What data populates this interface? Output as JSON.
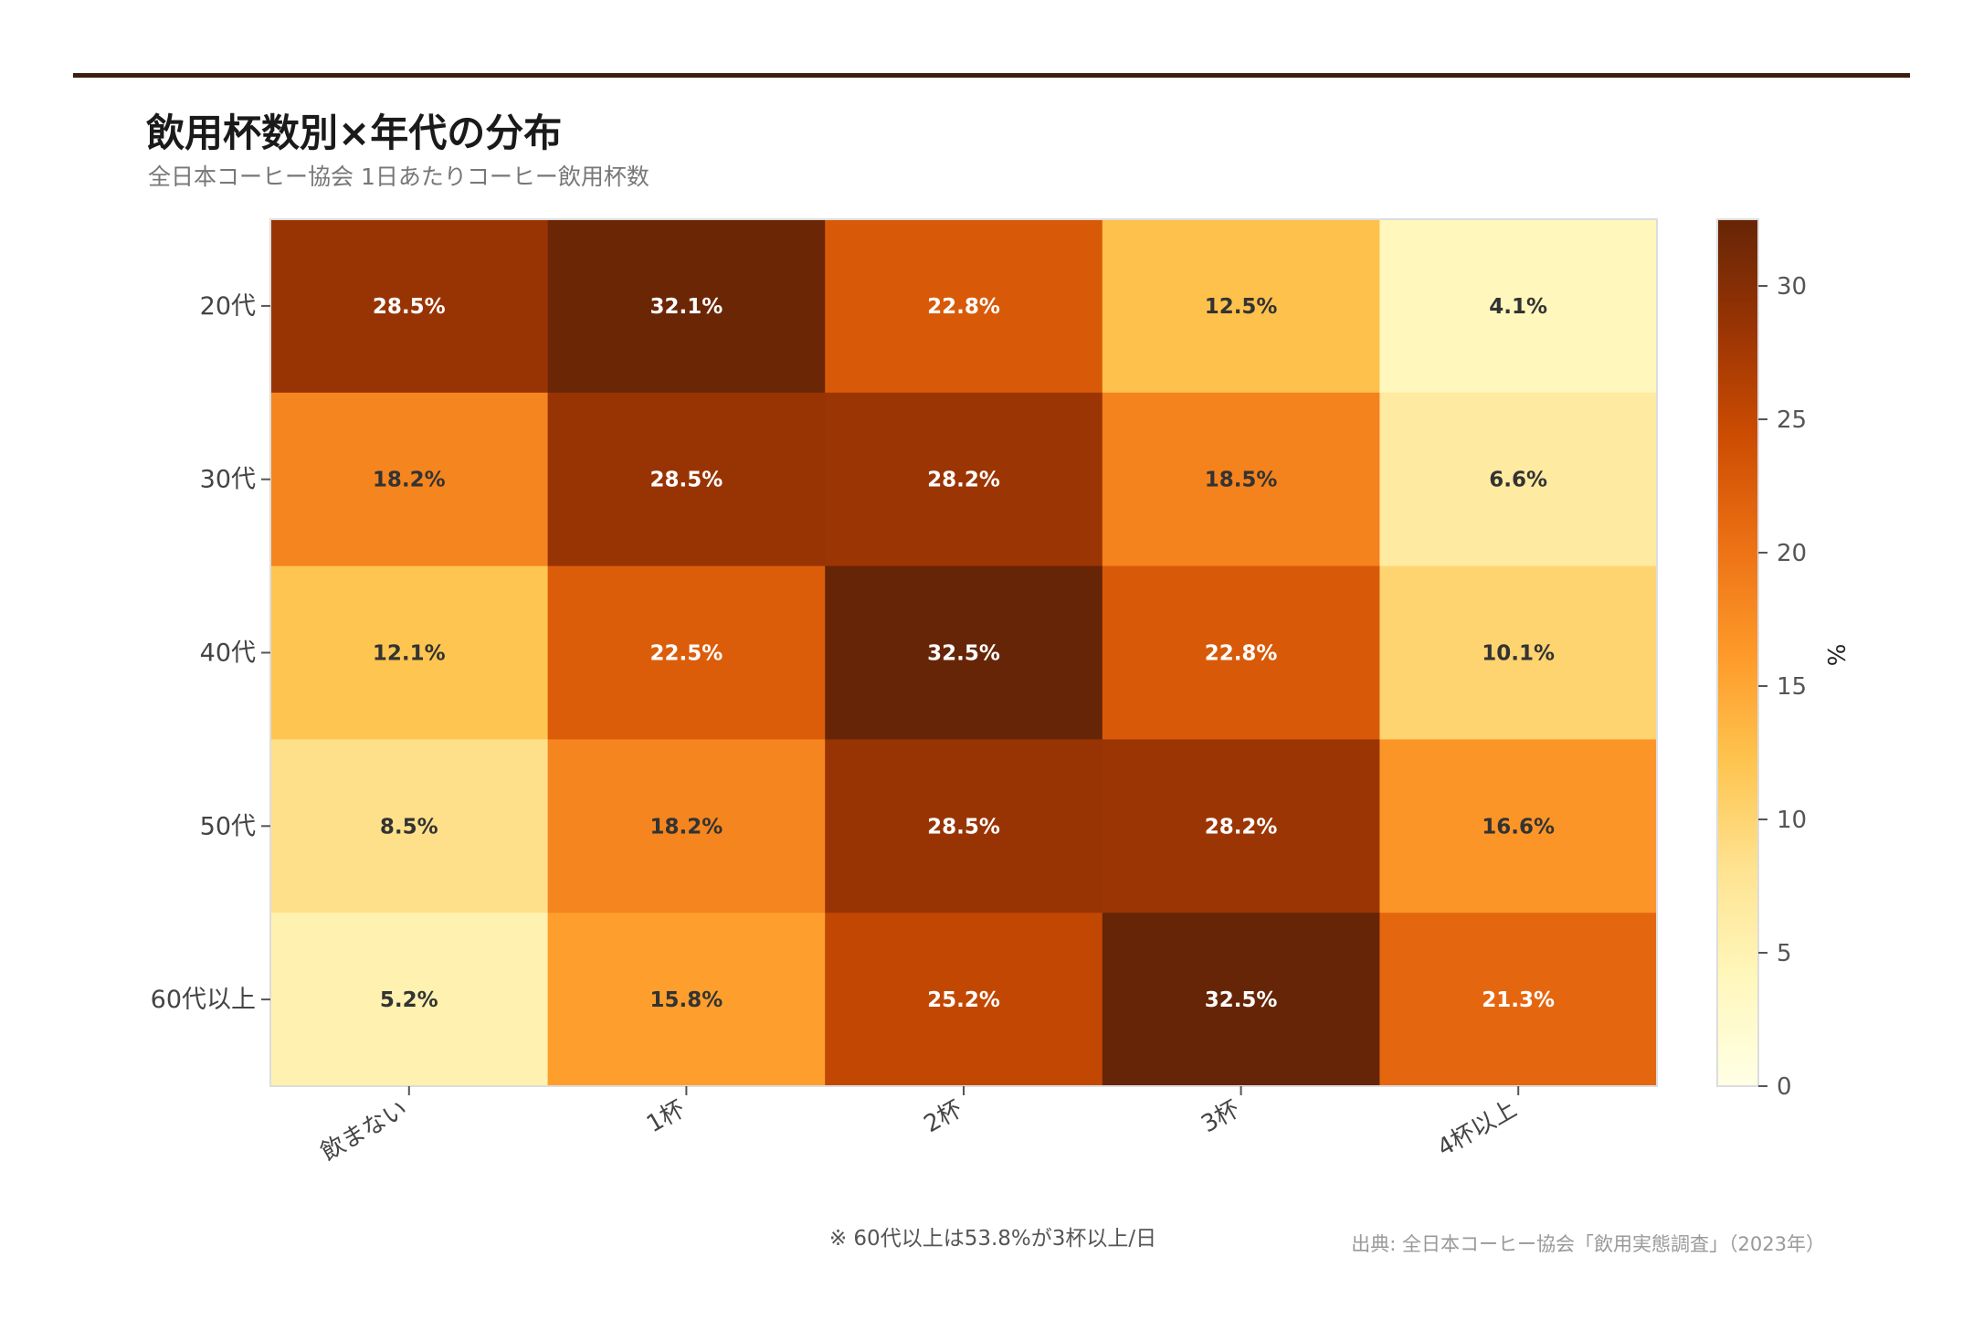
{
  "title": "飲用杯数別×年代の分布",
  "subtitle": "全日本コーヒー協会 1日あたりコーヒー飲用杯数",
  "note": "※ 60代以上は53.8%が3杯以上/日",
  "source": "出典: 全日本コーヒー協会「飲用実態調査」（2023年）",
  "chart_data": {
    "type": "heatmap",
    "title": "飲用杯数別×年代の分布",
    "x_categories": [
      "飲まない",
      "1杯",
      "2杯",
      "3杯",
      "4杯以上"
    ],
    "y_categories": [
      "20代",
      "30代",
      "40代",
      "50代",
      "60代以上"
    ],
    "values": [
      [
        28.5,
        32.1,
        22.8,
        12.5,
        4.1
      ],
      [
        18.2,
        28.5,
        28.2,
        18.5,
        6.6
      ],
      [
        12.1,
        22.5,
        32.5,
        22.8,
        10.1
      ],
      [
        8.5,
        18.2,
        28.5,
        28.2,
        16.6
      ],
      [
        5.2,
        15.8,
        25.2,
        32.5,
        21.3
      ]
    ],
    "value_format": "{v}%",
    "colormap": "YlOrBr",
    "colorbar": {
      "label": "%",
      "range": [
        0,
        32.5
      ],
      "ticks": [
        0,
        5,
        10,
        15,
        20,
        25,
        30
      ]
    },
    "colors": {
      "rule": "#3b1f0e",
      "text_dark": "#333333",
      "text_light": "#ffffff"
    }
  }
}
